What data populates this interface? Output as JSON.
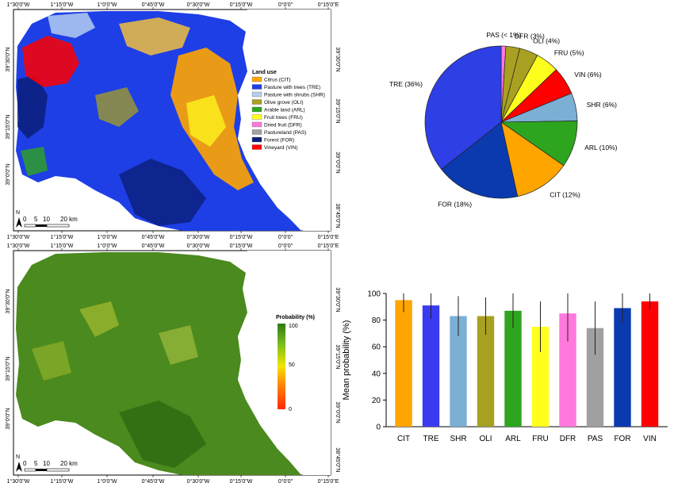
{
  "maps": {
    "longitude_ticks": [
      "1°30'0\"W",
      "1°15'0\"W",
      "1°0'0\"W",
      "0°45'0\"W",
      "0°30'0\"W",
      "0°15'0\"W",
      "0°0'0\"",
      "0°15'0\"E"
    ],
    "latitude_ticks_left": [
      "39°30'0\"N",
      "39°15'0\"N",
      "39°0'0\"N"
    ],
    "latitude_ticks_right": [
      "39°30'0\"N",
      "39°15'0\"N",
      "39°0'0\"N",
      "38°45'0\"N"
    ],
    "north_label": "N",
    "scale_bar": [
      "0",
      "5",
      "10",
      "20 km"
    ],
    "landuse_legend": {
      "title": "Land use",
      "items": [
        {
          "label": "Citrus (CIT)",
          "color": "#FFA500"
        },
        {
          "label": "Pasture with trees (TRE)",
          "color": "#1E3FE6"
        },
        {
          "label": "Pasture with shrubs (SHR)",
          "color": "#B4CDF0"
        },
        {
          "label": "Olive grove (OLI)",
          "color": "#A8A020"
        },
        {
          "label": "Arable land (ARL)",
          "color": "#2EA51E"
        },
        {
          "label": "Fruit trees (FRU)",
          "color": "#FFFF1E"
        },
        {
          "label": "Dried fruit (DFR)",
          "color": "#FF78DC"
        },
        {
          "label": "Pastureland (PAS)",
          "color": "#A0A0A0"
        },
        {
          "label": "Forest (FOR)",
          "color": "#0A1E78"
        },
        {
          "label": "Vineyard (VIN)",
          "color": "#FF0000"
        }
      ]
    },
    "probability_legend": {
      "title": "Probability (%)",
      "ticks": [
        "100",
        "50",
        "0"
      ]
    }
  },
  "chart_data": [
    {
      "type": "pie",
      "slices": [
        {
          "label": "PAS (< 1%)",
          "value": 1,
          "color": "#FF78DC"
        },
        {
          "label": "DFR (3%)",
          "value": 3,
          "color": "#A8A020"
        },
        {
          "label": "OLI (4%)",
          "value": 4,
          "color": "#A8A020"
        },
        {
          "label": "FRU (5%)",
          "value": 5,
          "color": "#FFFF1E"
        },
        {
          "label": "VIN (6%)",
          "value": 6,
          "color": "#FF0000"
        },
        {
          "label": "SHR (6%)",
          "value": 6,
          "color": "#7BAFD4"
        },
        {
          "label": "ARL (10%)",
          "value": 10,
          "color": "#2EA51E"
        },
        {
          "label": "CIT (12%)",
          "value": 12,
          "color": "#FFA500"
        },
        {
          "label": "FOR (18%)",
          "value": 18,
          "color": "#0A3AAE"
        },
        {
          "label": "TRE (36%)",
          "value": 36,
          "color": "#2E3FE6"
        }
      ]
    },
    {
      "type": "bar",
      "categories": [
        "CIT",
        "TRE",
        "SHR",
        "OLI",
        "ARL",
        "FRU",
        "DFR",
        "PAS",
        "FOR",
        "VIN"
      ],
      "values": [
        95,
        91,
        83,
        83,
        87,
        75,
        85,
        74,
        89,
        94
      ],
      "errors": [
        9,
        10,
        15,
        14,
        13,
        19,
        21,
        20,
        11,
        6
      ],
      "colors": [
        "#FFA500",
        "#3A3AF0",
        "#7BAFD4",
        "#A8A020",
        "#2EA51E",
        "#FFFF1E",
        "#FF78DC",
        "#A0A0A0",
        "#0A3AAE",
        "#FF0000"
      ],
      "ylabel": "Mean probability (%)",
      "ylim": [
        0,
        100
      ],
      "yticks": [
        0,
        20,
        40,
        60,
        80,
        100
      ]
    }
  ]
}
